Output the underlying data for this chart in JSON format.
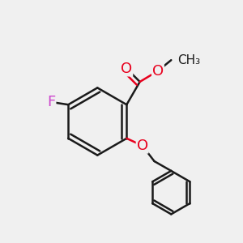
{
  "bg_color": "#f0f0f0",
  "bond_color": "#1a1a1a",
  "line_width": 1.8,
  "atom_colors": {
    "O": "#e8001d",
    "F": "#cc44cc",
    "C": "#1a1a1a"
  },
  "font_size_atom": 13,
  "font_size_methyl": 11
}
